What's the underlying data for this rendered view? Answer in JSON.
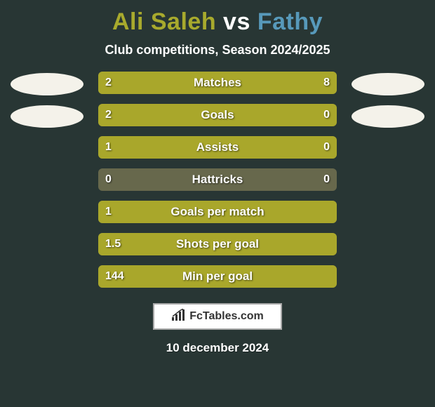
{
  "background_color": "#283634",
  "title": {
    "player1": "Ali Saleh",
    "player1_color": "#a8aa2d",
    "vs": "vs",
    "vs_color": "#ffffff",
    "player2": "Fathy",
    "player2_color": "#5799ba"
  },
  "subtitle": "Club competitions, Season 2024/2025",
  "oval_color": "#f4f2ea",
  "bar": {
    "track_color": "#67684c",
    "left_fill_color": "#a9a72b",
    "right_fill_color": "#a9a72b",
    "text_shadow": "1px 1px 2px rgba(0,0,0,0.6)"
  },
  "stats": [
    {
      "label": "Matches",
      "left_val": "2",
      "right_val": "8",
      "left_pct": 20,
      "right_pct": 80
    },
    {
      "label": "Goals",
      "left_val": "2",
      "right_val": "0",
      "left_pct": 80,
      "right_pct": 20
    },
    {
      "label": "Assists",
      "left_val": "1",
      "right_val": "0",
      "left_pct": 80,
      "right_pct": 20
    },
    {
      "label": "Hattricks",
      "left_val": "0",
      "right_val": "0",
      "left_pct": 0,
      "right_pct": 0
    },
    {
      "label": "Goals per match",
      "left_val": "1",
      "right_val": "",
      "left_pct": 100,
      "right_pct": 0
    },
    {
      "label": "Shots per goal",
      "left_val": "1.5",
      "right_val": "",
      "left_pct": 100,
      "right_pct": 0
    },
    {
      "label": "Min per goal",
      "left_val": "144",
      "right_val": "",
      "left_pct": 100,
      "right_pct": 0
    }
  ],
  "brand": {
    "text": "FcTables.com",
    "border_color": "#a9a9a9",
    "bg_color": "#ffffff",
    "text_color": "#333333",
    "chart_color": "#333333"
  },
  "date": "10 december 2024"
}
